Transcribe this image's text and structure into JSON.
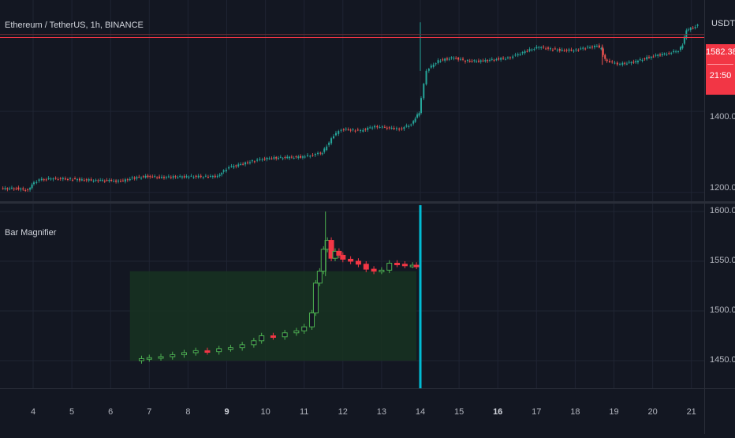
{
  "header": {
    "symbol_title": "Ethereum / TetherUS, 1h, BINANCE",
    "currency": "USDT"
  },
  "price_badge": {
    "price": "1582.38",
    "countdown": "21:50"
  },
  "indicator": {
    "name": "Bar Magnifier"
  },
  "colors": {
    "background": "#131722",
    "grid": "#1f2433",
    "up": "#26a69a",
    "down": "#ef5350",
    "magnifier_up": "#4caf50",
    "magnifier_down": "#f23645",
    "marker": "#00bcd4",
    "price_line": "#f23645",
    "zone_fill": "#173321"
  },
  "main_axis": {
    "labels": [
      "1400.00",
      "1200.00"
    ]
  },
  "indicator_axis": {
    "labels": [
      "1600.00",
      "1550.00",
      "1500.00",
      "1450.00"
    ]
  },
  "x_axis": {
    "labels": [
      "4",
      "5",
      "6",
      "7",
      "8",
      "9",
      "10",
      "11",
      "12",
      "13",
      "14",
      "15",
      "16",
      "17",
      "18",
      "19",
      "20",
      "21"
    ],
    "bold": [
      "9",
      "16"
    ]
  },
  "chart_data": [
    {
      "type": "line",
      "title": "Ethereum / TetherUS, 1h, BINANCE",
      "ylabel": "USDT",
      "ylim": [
        1180,
        1640
      ],
      "current_price": 1582.38,
      "x": [
        3.2,
        3.6,
        3.9,
        4.0,
        4.2,
        4.5,
        5.0,
        5.3,
        5.6,
        6.0,
        6.3,
        6.6,
        7.0,
        7.3,
        7.6,
        8.0,
        8.5,
        8.8,
        8.9,
        9.1,
        9.4,
        9.7,
        9.9,
        10.2,
        10.6,
        11.0,
        11.2,
        11.4,
        11.5,
        11.8,
        12.0,
        12.3,
        12.5,
        12.8,
        13.0,
        13.3,
        13.5,
        13.8,
        13.9,
        14.0,
        14.2,
        14.5,
        14.9,
        15.2,
        15.6,
        16.0,
        16.3,
        16.5,
        16.8,
        17.1,
        17.4,
        17.7,
        18.0,
        18.3,
        18.6,
        18.7,
        18.8,
        19.0,
        19.2,
        19.6,
        20.0,
        20.4,
        20.7,
        20.8,
        20.9,
        21.2
      ],
      "values": [
        1209,
        1210,
        1205,
        1220,
        1231,
        1234,
        1233,
        1231,
        1230,
        1229,
        1227,
        1235,
        1240,
        1237,
        1238,
        1239,
        1239,
        1240,
        1249,
        1262,
        1269,
        1277,
        1281,
        1285,
        1286,
        1288,
        1291,
        1296,
        1298,
        1340,
        1356,
        1354,
        1352,
        1362,
        1362,
        1358,
        1356,
        1368,
        1384,
        1397,
        1502,
        1525,
        1533,
        1525,
        1524,
        1529,
        1532,
        1538,
        1550,
        1559,
        1554,
        1551,
        1551,
        1557,
        1561,
        1554,
        1528,
        1520,
        1517,
        1523,
        1536,
        1543,
        1550,
        1565,
        1600,
        1612
      ]
    },
    {
      "type": "line",
      "title": "Bar Magnifier",
      "ylim": [
        1425,
        1605
      ],
      "x": [
        6.5,
        6.8,
        7.0,
        7.3,
        7.6,
        7.9,
        8.2,
        8.5,
        8.8,
        9.1,
        9.4,
        9.7,
        9.9,
        10.2,
        10.5,
        10.8,
        11.0,
        11.2,
        11.3,
        11.4,
        11.5,
        11.6,
        11.7,
        11.8,
        11.9,
        12.0,
        12.2,
        12.4,
        12.6,
        12.8,
        13.0,
        13.2,
        13.4,
        13.6,
        13.8,
        13.9
      ],
      "values": [
        1450,
        1452,
        1453,
        1454,
        1456,
        1458,
        1460,
        1459,
        1462,
        1463,
        1466,
        1470,
        1475,
        1474,
        1478,
        1480,
        1484,
        1498,
        1528,
        1540,
        1562,
        1571,
        1553,
        1560,
        1556,
        1552,
        1550,
        1547,
        1542,
        1540,
        1541,
        1548,
        1547,
        1546,
        1546,
        1545
      ]
    }
  ]
}
